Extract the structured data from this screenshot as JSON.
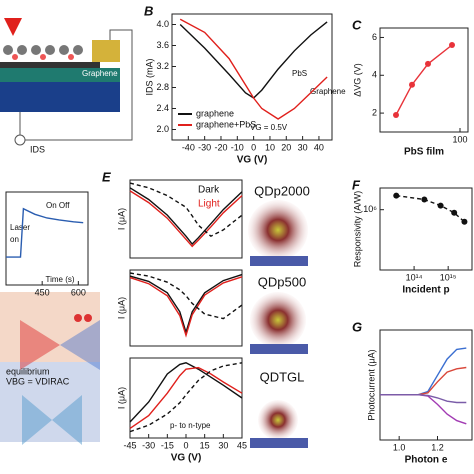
{
  "schematic": {
    "labels": [
      "Graphene",
      "IDS",
      "VBG = VDIRAC",
      "equilibrium"
    ]
  },
  "chart_data": [
    {
      "type": "line",
      "panel": "B",
      "xlabel": "VG (V)",
      "ylabel": "IDS (mA)",
      "x": [
        -45,
        -30,
        -15,
        -5,
        0,
        5,
        15,
        25,
        35,
        45
      ],
      "series": [
        {
          "name": "graphene",
          "color": "#111111",
          "values": [
            4.0,
            3.55,
            3.05,
            2.7,
            2.6,
            2.75,
            3.15,
            3.5,
            3.8,
            4.05
          ]
        },
        {
          "name": "graphene+PbS",
          "color": "#e0201c",
          "values": [
            4.1,
            3.85,
            3.35,
            2.85,
            2.6,
            2.4,
            2.2,
            2.4,
            2.7,
            3.0
          ]
        }
      ],
      "xlim": [
        -50,
        48
      ],
      "ylim": [
        1.8,
        4.2
      ],
      "xticks": [
        -40,
        -30,
        -20,
        -10,
        0,
        10,
        20,
        30,
        40
      ],
      "yticks": [
        {
          "value": 2,
          "label": "2.0"
        },
        {
          "value": 2.4,
          "label": "2.4"
        },
        {
          "value": 2.8,
          "label": "2.8"
        },
        {
          "value": 3.2,
          "label": "3.2"
        },
        {
          "value": 3.6,
          "label": "3.6"
        },
        {
          "value": 4,
          "label": "4.0"
        }
      ],
      "legend": "lower left",
      "annotations": [
        "VG = 0.5V",
        "PbS",
        "Graphene"
      ]
    },
    {
      "type": "line",
      "panel": "C",
      "xlabel": "PbS film",
      "ylabel": "ΔVG (V)",
      "x": [
        20,
        40,
        60,
        90
      ],
      "series": [
        {
          "color": "#e8333a",
          "marker": true,
          "values": [
            1.9,
            3.5,
            4.6,
            5.6
          ]
        }
      ],
      "xlim": [
        0,
        110
      ],
      "ylim": [
        1,
        6.5
      ],
      "xticks": [
        100
      ],
      "yticks": [
        2,
        4,
        6
      ]
    },
    {
      "type": "line",
      "x": [
        300,
        360,
        372,
        420,
        470,
        520,
        580,
        620
      ],
      "series": [
        {
          "color": "#2a5db0",
          "values": [
            0.3,
            0.3,
            0.82,
            0.76,
            0.72,
            0.7,
            0.68,
            0.67
          ]
        }
      ],
      "xlim": [
        300,
        640
      ],
      "ylim": [
        0,
        1
      ],
      "xticks": [
        450,
        600
      ],
      "annotations": [
        "Laser",
        "on",
        "On Off",
        "Time (s)"
      ]
    },
    {
      "type": "line",
      "panel": "E",
      "ylabel": "I (μA)",
      "label": "QDp2000",
      "x": [
        -45,
        -30,
        -15,
        0,
        5,
        10,
        20,
        30,
        45
      ],
      "series": [
        {
          "name": "Dark",
          "color": "#111111",
          "values": [
            9,
            7.5,
            5.5,
            2.8,
            1.8,
            2.6,
            4.4,
            6.2,
            8.5
          ]
        },
        {
          "name": "Light",
          "color": "#e0201c",
          "values": [
            8.6,
            7.1,
            5.1,
            2.4,
            1.5,
            2.3,
            4.0,
            5.8,
            8.0
          ]
        },
        {
          "color": "#111111",
          "dash": true,
          "values": [
            9.6,
            9,
            8,
            6.5,
            5.4,
            4.2,
            2.8,
            3.6,
            5.5
          ]
        }
      ],
      "xlim": [
        -45,
        45
      ],
      "ylim": [
        0,
        10
      ],
      "legend": "text"
    },
    {
      "type": "line",
      "ylabel": "I (μA)",
      "label": "QDp500",
      "x": [
        -45,
        -30,
        -15,
        -5,
        0,
        5,
        15,
        30,
        45
      ],
      "series": [
        {
          "color": "#111111",
          "values": [
            9.2,
            8.5,
            7,
            4.5,
            1.8,
            4.5,
            7,
            8.6,
            9.4
          ]
        },
        {
          "color": "#e0201c",
          "values": [
            9,
            8.2,
            6.6,
            4,
            1.4,
            4.1,
            6.7,
            8.3,
            9.1
          ]
        },
        {
          "color": "#111111",
          "dash": true,
          "values": [
            9.6,
            9.2,
            8.4,
            7.4,
            6.6,
            5.6,
            4.2,
            3.6,
            5.4
          ]
        }
      ],
      "xlim": [
        -45,
        45
      ],
      "ylim": [
        0,
        10
      ]
    },
    {
      "type": "line",
      "ylabel": "I (μA)",
      "xlabel": "VG (V)",
      "label": "QDTGL",
      "x": [
        -45,
        -30,
        -15,
        -5,
        0,
        10,
        20,
        30,
        45
      ],
      "series": [
        {
          "color": "#111111",
          "values": [
            2,
            4.5,
            8,
            9.2,
            9.4,
            8.6,
            7.6,
            6.6,
            5
          ]
        },
        {
          "color": "#e0201c",
          "values": [
            1.2,
            2.8,
            5.6,
            7.8,
            8.6,
            8.8,
            8.0,
            7.0,
            5.6
          ]
        },
        {
          "color": "#111111",
          "dash": true,
          "values": [
            0.8,
            1.6,
            3.0,
            4.4,
            5.4,
            7.2,
            8.4,
            9.0,
            9.4
          ]
        }
      ],
      "xlim": [
        -45,
        45
      ],
      "ylim": [
        0,
        10
      ],
      "xticks": [
        -45,
        -30,
        -15,
        0,
        15,
        30,
        45
      ],
      "annotations": [
        "p- to n-type"
      ]
    },
    {
      "type": "line",
      "panel": "F",
      "xlabel": "Incident p",
      "ylabel": "Responsivity (A/W)",
      "x": [
        30000000000000.0,
        200000000000000.0,
        600000000000000.0,
        1500000000000000.0,
        3000000000000000.0
      ],
      "series": [
        {
          "color": "#111111",
          "marker": true,
          "dash": true,
          "values": [
            5000000.0,
            3200000.0,
            1600000.0,
            700000.0,
            250000.0
          ]
        }
      ],
      "xlog": true,
      "ylog": true,
      "xlim": [
        10000000000000.0,
        5000000000000000.0
      ],
      "ylim": [
        1000.0,
        12000000.0
      ],
      "xticks": [
        {
          "value": 100000000000000.0,
          "label": "10¹⁴"
        },
        {
          "value": 1000000000000000.0,
          "label": "10¹⁵"
        }
      ],
      "yticks": [
        {
          "value": 1000000.0,
          "label": "10⁶"
        }
      ]
    },
    {
      "type": "line",
      "panel": "G",
      "xlabel": "Photon e",
      "ylabel": "Photocurrent (μA)",
      "x": [
        0.9,
        1.0,
        1.1,
        1.15,
        1.2,
        1.25,
        1.3,
        1.35
      ],
      "series": [
        {
          "color": "#3b6fd1",
          "values": [
            0,
            0,
            0,
            0.05,
            0.3,
            0.55,
            0.7,
            0.72
          ]
        },
        {
          "color": "#d9473a",
          "values": [
            0,
            0,
            0,
            0.03,
            0.2,
            0.35,
            0.4,
            0.42
          ]
        },
        {
          "color": "#a23bb3",
          "values": [
            0,
            0,
            0,
            -0.02,
            -0.15,
            -0.3,
            -0.4,
            -0.45
          ]
        },
        {
          "color": "#7a5ca8",
          "values": [
            0,
            0,
            0,
            -0.01,
            -0.05,
            -0.1,
            -0.12,
            -0.12
          ]
        }
      ],
      "xlim": [
        0.9,
        1.38
      ],
      "ylim": [
        -0.7,
        1
      ],
      "xticks": [
        {
          "value": 1,
          "label": "1.0"
        },
        {
          "value": 1.2,
          "label": "1.2"
        }
      ]
    }
  ]
}
